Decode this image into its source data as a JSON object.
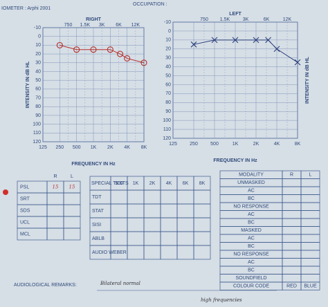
{
  "header": {
    "audiometer": "IOMETER : Arphi 2001",
    "occupation": "OCCUPATION :"
  },
  "audiograms": [
    {
      "ear": "RIGHT",
      "top_labels": [
        "750",
        "1.5K",
        "3K",
        "6K",
        "12K"
      ],
      "bottom_labels": [
        "125",
        "250",
        "500",
        "1K",
        "2K",
        "4K",
        "8K"
      ],
      "yticks": [
        -10,
        0,
        10,
        20,
        30,
        40,
        50,
        60,
        70,
        80,
        90,
        100,
        110,
        120
      ],
      "y_label": "INTENSITY IN dB HL",
      "x_label": "FREQUENCY IN Hz",
      "frequencies": [
        250,
        500,
        1000,
        2000,
        3000,
        4000,
        8000
      ],
      "thresholds": [
        10,
        15,
        15,
        15,
        20,
        25,
        30
      ]
    },
    {
      "ear": "LEFT",
      "top_labels": [
        "750",
        "1.5K",
        "3K",
        "6K",
        "12K"
      ],
      "bottom_labels": [
        "125",
        "250",
        "500",
        "1K",
        "2K",
        "4K",
        "8K"
      ],
      "yticks": [
        -10,
        0,
        10,
        20,
        30,
        40,
        50,
        60,
        70,
        80,
        90,
        100,
        110,
        120
      ],
      "y_label": "INTENSITY IN dB HL",
      "x_label": "FREQUENCY IN Hz",
      "frequencies": [
        250,
        500,
        1000,
        2000,
        3000,
        4000,
        8000
      ],
      "thresholds": [
        15,
        10,
        10,
        10,
        10,
        20,
        35
      ]
    }
  ],
  "speech_table": {
    "columns": [
      "R",
      "L"
    ],
    "rows": [
      {
        "label": "PSL",
        "R": "15",
        "L": "15"
      },
      {
        "label": "SRT"
      },
      {
        "label": "SDS"
      },
      {
        "label": "UCL"
      },
      {
        "label": "MCL"
      }
    ]
  },
  "special_tests": {
    "header": "SPECIAL TESTS",
    "columns": [
      "500",
      "1K",
      "2K",
      "4K",
      "6K",
      "8K"
    ],
    "rows": [
      "TDT",
      "STAT",
      "SISI",
      "ABLB",
      "AUDIO WEBER"
    ]
  },
  "modality": {
    "header": [
      "MODALITY",
      "R",
      "L"
    ],
    "rows": [
      "UNMASKED",
      "AC",
      "BC",
      "NO RESPONSE",
      "AC",
      "BC",
      "MASKED",
      "AC",
      "BC",
      "NO RESPONSE",
      "AC",
      "BC",
      "SOUNDFIELD"
    ],
    "footer": [
      "COLOUR CODE",
      "RED",
      "BLUE"
    ]
  },
  "remarks": {
    "label": "AUDIOLOGICAL REMARKS:",
    "text": [
      "Bilateral normal",
      "high frequencies"
    ]
  }
}
